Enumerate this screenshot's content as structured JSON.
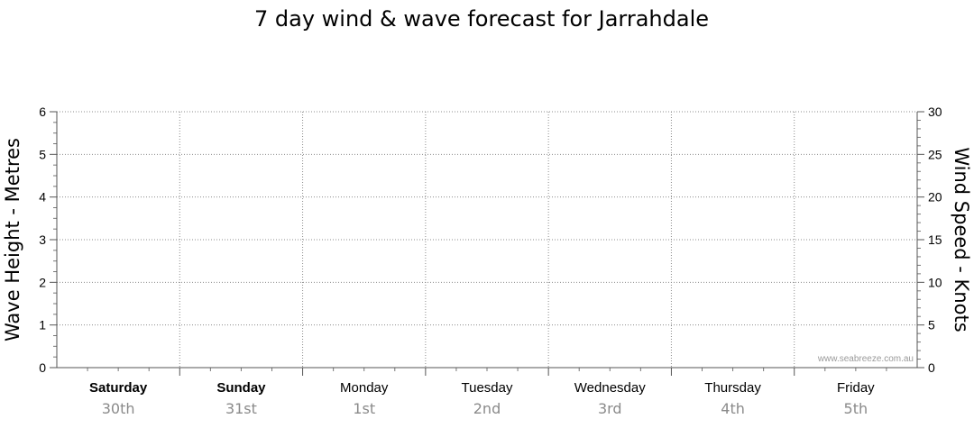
{
  "chart_data": {
    "type": "line",
    "title": "7 day wind & wave forecast for Jarrahdale",
    "ylabel_left": "Wave Height - Metres",
    "ylabel_right": "Wind Speed - Knots",
    "ylim_left": [
      0,
      6
    ],
    "ylim_right": [
      0,
      30
    ],
    "yticks_left": [
      "0",
      "1",
      "2",
      "3",
      "4",
      "5",
      "6"
    ],
    "yticks_right": [
      "0",
      "5",
      "10",
      "15",
      "20",
      "25",
      "30"
    ],
    "days": [
      {
        "day": "Saturday",
        "date": "30th",
        "bold": true
      },
      {
        "day": "Sunday",
        "date": "31st",
        "bold": true
      },
      {
        "day": "Monday",
        "date": "1st",
        "bold": false
      },
      {
        "day": "Tuesday",
        "date": "2nd",
        "bold": false
      },
      {
        "day": "Wednesday",
        "date": "3rd",
        "bold": false
      },
      {
        "day": "Thursday",
        "date": "4th",
        "bold": false
      },
      {
        "day": "Friday",
        "date": "5th",
        "bold": false
      }
    ],
    "grid": true,
    "series": [],
    "watermark": "www.seabreeze.com.au"
  }
}
